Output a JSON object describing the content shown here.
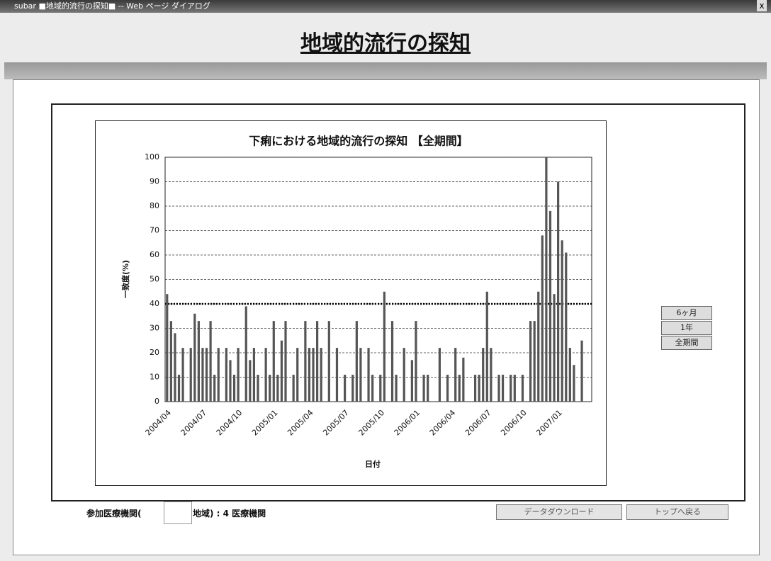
{
  "window": {
    "title": "subar ■地域的流行の探知■ -- Web ページ ダイアログ",
    "close": "x"
  },
  "header": {
    "title": "地域的流行の探知"
  },
  "period_buttons": [
    "6ヶ月",
    "1年",
    "全期間"
  ],
  "footer": {
    "participants_prefix": "参加医療機関(",
    "participants_suffix": "地域) : 4 医療機関",
    "download": "データダウンロード",
    "back": "トップへ戻る"
  },
  "chart_data": {
    "type": "bar",
    "title": "下痢における地域的流行の探知 【全期間】",
    "x_label": "日付",
    "y_label": "一致度(%)",
    "color": "#555555",
    "ylim": [
      0,
      100
    ],
    "yticks": [
      0,
      10,
      20,
      30,
      40,
      50,
      60,
      70,
      80,
      90,
      100
    ],
    "grid": true,
    "reference_line": 40,
    "categories": [
      "2004/04",
      null,
      null,
      null,
      null,
      null,
      null,
      null,
      null,
      "2004/07",
      null,
      null,
      null,
      null,
      null,
      null,
      null,
      null,
      "2004/10",
      null,
      null,
      null,
      null,
      null,
      null,
      null,
      null,
      "2005/01",
      null,
      null,
      null,
      null,
      null,
      null,
      null,
      null,
      "2005/04",
      null,
      null,
      null,
      null,
      null,
      null,
      null,
      null,
      "2005/07",
      null,
      null,
      null,
      null,
      null,
      null,
      null,
      null,
      "2005/10",
      null,
      null,
      null,
      null,
      null,
      null,
      null,
      null,
      "2006/01",
      null,
      null,
      null,
      null,
      null,
      null,
      null,
      null,
      "2006/04",
      null,
      null,
      null,
      null,
      null,
      null,
      null,
      null,
      "2006/07",
      null,
      null,
      null,
      null,
      null,
      null,
      null,
      null,
      "2006/10",
      null,
      null,
      null,
      null,
      null,
      null,
      null,
      null,
      "2007/01",
      null,
      null,
      null,
      null,
      null,
      null,
      null,
      null
    ],
    "values": [
      44,
      33,
      28,
      11,
      22,
      0,
      22,
      36,
      33,
      22,
      22,
      33,
      11,
      22,
      0,
      22,
      17,
      11,
      22,
      0,
      39,
      17,
      22,
      11,
      0,
      22,
      11,
      33,
      11,
      25,
      33,
      0,
      11,
      22,
      0,
      33,
      22,
      22,
      33,
      22,
      0,
      33,
      0,
      22,
      0,
      11,
      0,
      11,
      33,
      22,
      0,
      22,
      11,
      0,
      11,
      45,
      0,
      33,
      11,
      0,
      22,
      0,
      17,
      33,
      0,
      11,
      11,
      0,
      0,
      22,
      0,
      11,
      0,
      22,
      11,
      18,
      0,
      0,
      11,
      11,
      22,
      45,
      22,
      0,
      11,
      11,
      0,
      11,
      11,
      0,
      11,
      0,
      33,
      33,
      45,
      68,
      100,
      78,
      44,
      90,
      66,
      61,
      22,
      15,
      0,
      25,
      0,
      0
    ]
  }
}
